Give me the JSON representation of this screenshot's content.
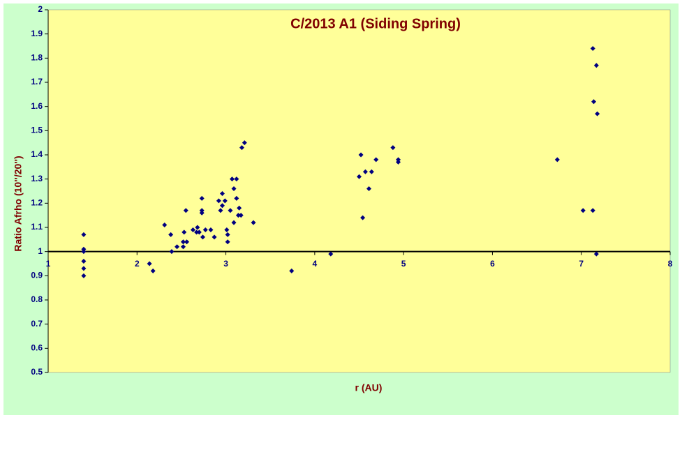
{
  "chart_data": {
    "type": "scatter",
    "title": "C/2013 A1 (Siding Spring)",
    "x_label": "r (AU)",
    "y_label": "Ratio Afrho (10''/20'')",
    "xlim": [
      1,
      8
    ],
    "xticks": [
      1,
      2,
      3,
      4,
      5,
      6,
      7,
      8
    ],
    "ylim": [
      0.5,
      2
    ],
    "yticks": [
      0.5,
      0.6,
      0.7,
      0.8,
      0.9,
      1,
      1.1,
      1.2,
      1.3,
      1.4,
      1.5,
      1.6,
      1.7,
      1.8,
      1.9,
      2
    ],
    "x_axis_crosses_at": 1,
    "series": [
      {
        "color": "#000080",
        "x": [
          1.4,
          1.4,
          1.4,
          1.4,
          1.4,
          1.4,
          2.14,
          2.18,
          2.31,
          2.38,
          2.39,
          2.45,
          2.52,
          2.52,
          2.53,
          2.55,
          2.56,
          2.63,
          2.67,
          2.68,
          2.7,
          2.73,
          2.73,
          2.73,
          2.74,
          2.77,
          2.83,
          2.87,
          2.92,
          2.94,
          2.96,
          2.96,
          2.99,
          3.01,
          3.02,
          3.02,
          3.05,
          3.07,
          3.09,
          3.09,
          3.12,
          3.12,
          3.15,
          3.14,
          3.17,
          3.18,
          3.21,
          3.31,
          3.74,
          4.18,
          4.5,
          4.52,
          4.54,
          4.57,
          4.61,
          4.64,
          4.69,
          4.88,
          4.94,
          4.94,
          6.73,
          7.02,
          7.13,
          7.13,
          7.14,
          7.17,
          7.18,
          7.17
        ],
        "values": [
          1.07,
          1.01,
          1.0,
          0.96,
          0.93,
          0.9,
          0.95,
          0.92,
          1.11,
          1.07,
          1.0,
          1.02,
          1.02,
          1.04,
          1.08,
          1.17,
          1.04,
          1.09,
          1.08,
          1.1,
          1.08,
          1.22,
          1.17,
          1.16,
          1.06,
          1.09,
          1.09,
          1.06,
          1.21,
          1.17,
          1.19,
          1.24,
          1.21,
          1.09,
          1.04,
          1.07,
          1.17,
          1.3,
          1.26,
          1.12,
          1.3,
          1.22,
          1.18,
          1.15,
          1.15,
          1.43,
          1.45,
          1.12,
          0.92,
          0.99,
          1.31,
          1.4,
          1.14,
          1.33,
          1.26,
          1.33,
          1.38,
          1.43,
          1.38,
          1.37,
          1.38,
          1.17,
          1.17,
          1.84,
          1.62,
          1.77,
          1.57,
          0.99
        ]
      }
    ]
  }
}
